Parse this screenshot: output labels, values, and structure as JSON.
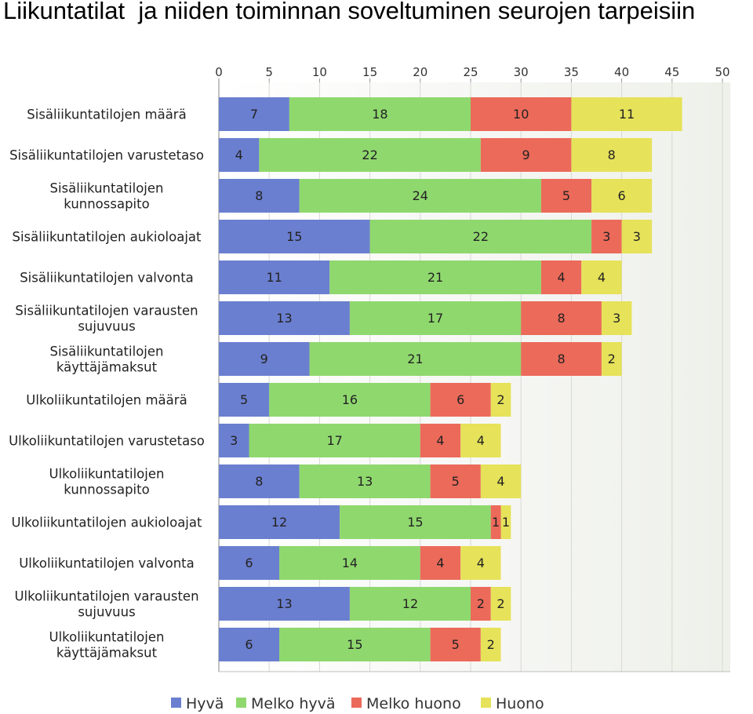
{
  "title": "Liikuntatilat  ja niiden toiminnan soveltuminen seurojen tarpeisiin",
  "chart_data": {
    "type": "bar",
    "orientation": "horizontal",
    "stacked": true,
    "title": "Liikuntatilat  ja niiden toiminnan soveltuminen seurojen tarpeisiin",
    "xlim": [
      0,
      50
    ],
    "xticks": [
      0,
      5,
      10,
      15,
      20,
      25,
      30,
      35,
      40,
      45,
      50
    ],
    "grid": true,
    "legend_position": "bottom",
    "categories": [
      [
        "Sisäliikuntatilojen määrä"
      ],
      [
        "Sisäliikuntatilojen varustetaso"
      ],
      [
        "Sisäliikuntatilojen",
        "kunnossapito"
      ],
      [
        "Sisäliikuntatilojen aukioloajat"
      ],
      [
        "Sisäliikuntatilojen valvonta"
      ],
      [
        "Sisäliikuntatilojen varausten",
        "sujuvuus"
      ],
      [
        "Sisäliikuntatilojen",
        "käyttäjämaksut"
      ],
      [
        "Ulkoliikuntatilojen määrä"
      ],
      [
        "Ulkoliikuntatilojen varustetaso"
      ],
      [
        "Ulkoliikuntatilojen",
        "kunnossapito"
      ],
      [
        "Ulkoliikuntatilojen aukioloajat"
      ],
      [
        "Ulkoliikuntatilojen valvonta"
      ],
      [
        "Ulkoliikuntatilojen varausten",
        "sujuvuus"
      ],
      [
        "Ulkoliikuntatilojen",
        "käyttäjämaksut"
      ]
    ],
    "series": [
      {
        "name": "Hyvä",
        "color": "#6b7fd0",
        "values": [
          7,
          4,
          8,
          15,
          11,
          13,
          9,
          5,
          3,
          8,
          12,
          6,
          13,
          6
        ]
      },
      {
        "name": "Melko hyvä",
        "color": "#8fd86e",
        "values": [
          18,
          22,
          24,
          22,
          21,
          17,
          21,
          16,
          17,
          13,
          15,
          14,
          12,
          15
        ]
      },
      {
        "name": "Melko huono",
        "color": "#ec6a5a",
        "values": [
          10,
          9,
          5,
          3,
          4,
          8,
          8,
          6,
          4,
          5,
          1,
          4,
          2,
          5
        ]
      },
      {
        "name": "Huono",
        "color": "#e6e25a",
        "values": [
          11,
          8,
          6,
          3,
          4,
          3,
          2,
          2,
          4,
          4,
          1,
          4,
          2,
          2
        ]
      }
    ]
  }
}
